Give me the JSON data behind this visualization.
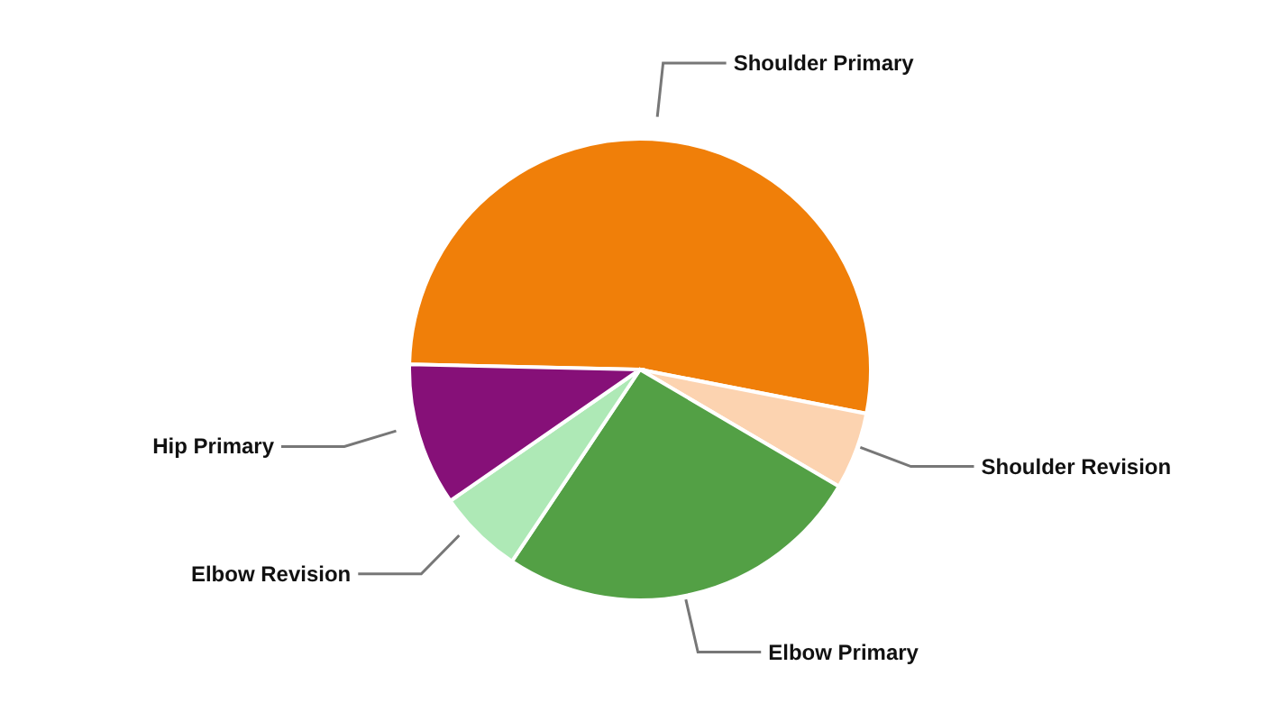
{
  "chart_data": {
    "type": "pie",
    "categories": [
      "Shoulder Primary",
      "Shoulder Revision",
      "Elbow Primary",
      "Elbow Revision",
      "Hip Primary"
    ],
    "values": [
      52.7,
      5.4,
      25.9,
      6.0,
      10.0
    ],
    "colors": [
      "#f07f09",
      "#fcd3b0",
      "#53a045",
      "#aee9b6",
      "#861078"
    ]
  }
}
